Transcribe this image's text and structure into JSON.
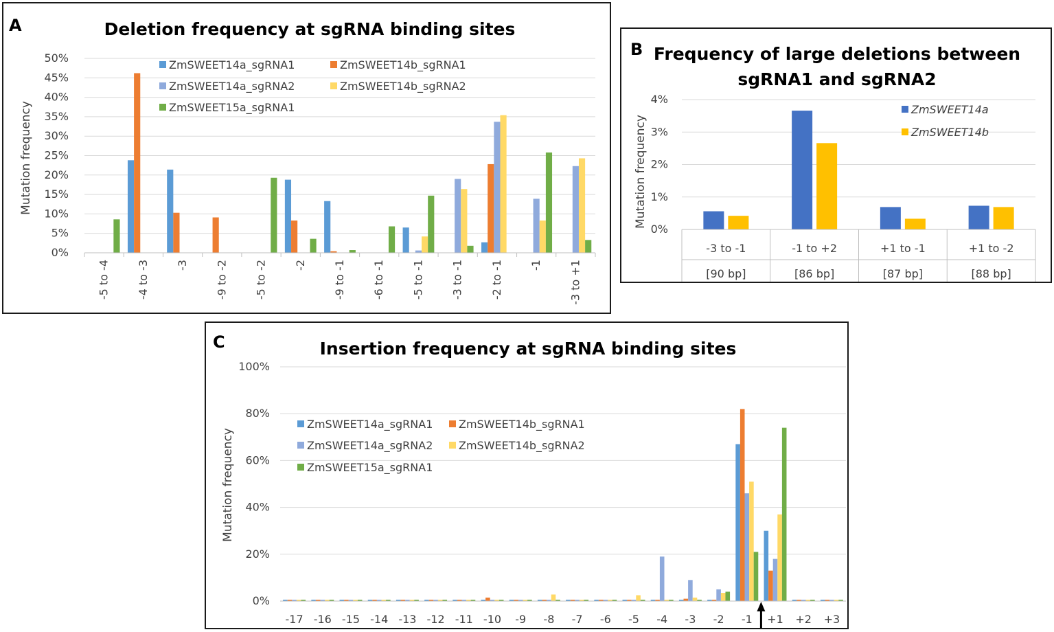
{
  "colors": {
    "s14a1": "#5b9bd5",
    "s14b1": "#ed7d31",
    "s14a2": "#8faadc",
    "s14b2": "#ffd966",
    "s15a1": "#70ad47",
    "b14a": "#4472c4",
    "b14b": "#ffc000",
    "grid": "#d9d9d9",
    "text": "#404040"
  },
  "panels": {
    "a": "A",
    "b": "B",
    "c": "C"
  },
  "chart_data": [
    {
      "panel": "A",
      "type": "bar",
      "title": "Deletion frequency at sgRNA binding sites",
      "xlabel": "",
      "ylabel": "Mutation frequency",
      "ylim": [
        0,
        50
      ],
      "yticks": [
        "0%",
        "5%",
        "10%",
        "15%",
        "20%",
        "25%",
        "30%",
        "35%",
        "40%",
        "45%",
        "50%"
      ],
      "legend_position": "top-left",
      "categories": [
        "-5 to -4",
        "-4 to -3",
        "-3",
        "-9 to -2",
        "-5 to -2",
        "-2",
        "-9 to -1",
        "-6 to -1",
        "-5 to -1",
        "-3 to -1",
        "-2 to -1",
        "-1",
        "-3 to +1"
      ],
      "series": [
        {
          "name": "ZmSWEET14a_sgRNA1",
          "color_key": "s14a1",
          "values": [
            0,
            23.8,
            21.4,
            0,
            0,
            18.8,
            13.3,
            0,
            6.5,
            0,
            2.7,
            0,
            0
          ]
        },
        {
          "name": "ZmSWEET14b_sgRNA1",
          "color_key": "s14b1",
          "values": [
            0,
            46.2,
            10.3,
            9.1,
            0,
            8.3,
            0.4,
            0,
            0,
            0,
            22.8,
            0,
            0
          ]
        },
        {
          "name": "ZmSWEET14a_sgRNA2",
          "color_key": "s14a2",
          "values": [
            0,
            0,
            0,
            0,
            0,
            0,
            0,
            0,
            0.6,
            19.0,
            33.7,
            13.9,
            22.3
          ]
        },
        {
          "name": "ZmSWEET14b_sgRNA2",
          "color_key": "s14b2",
          "values": [
            0,
            0,
            0,
            0,
            0,
            0,
            0,
            0,
            4.2,
            16.4,
            35.4,
            8.3,
            24.3
          ]
        },
        {
          "name": "ZmSWEET15a_sgRNA1",
          "color_key": "s15a1",
          "values": [
            8.6,
            0,
            0,
            0,
            19.3,
            3.6,
            0.7,
            6.8,
            14.7,
            1.8,
            0,
            25.8,
            3.3
          ]
        }
      ]
    },
    {
      "panel": "B",
      "type": "bar",
      "title": [
        "Frequency of large deletions between",
        "sgRNA1 and sgRNA2"
      ],
      "xlabel": "",
      "ylabel": "Mutation frequency",
      "ylim": [
        0,
        4
      ],
      "yticks": [
        "0%",
        "1%",
        "2%",
        "3%",
        "4%"
      ],
      "legend_position": "top-right",
      "categories": [
        "-3 to -1",
        "-1 to +2",
        "+1 to -1",
        "+1 to -2"
      ],
      "category_sublabels": [
        "[90 bp]",
        "[86 bp]",
        "[87 bp]",
        "[88 bp]"
      ],
      "series": [
        {
          "name": "ZmSWEET14a",
          "color_key": "b14a",
          "values": [
            0.56,
            3.66,
            0.69,
            0.73
          ]
        },
        {
          "name": "ZmSWEET14b",
          "color_key": "b14b",
          "values": [
            0.42,
            2.66,
            0.33,
            0.69
          ]
        }
      ]
    },
    {
      "panel": "C",
      "type": "bar",
      "title": "Insertion frequency at sgRNA binding sites",
      "xlabel": "",
      "ylabel": "Mutation frequency",
      "ylim": [
        0,
        100
      ],
      "yticks": [
        "0%",
        "20%",
        "40%",
        "60%",
        "80%",
        "100%"
      ],
      "legend_position": "top-left",
      "arrow_after_category": "-1",
      "categories": [
        "-17",
        "-16",
        "-15",
        "-14",
        "-13",
        "-12",
        "-11",
        "-10",
        "-9",
        "-8",
        "-7",
        "-6",
        "-5",
        "-4",
        "-3",
        "-2",
        "-1",
        "+1",
        "+2",
        "+3"
      ],
      "series": [
        {
          "name": "ZmSWEET14a_sgRNA1",
          "color_key": "s14a1",
          "values": [
            0.6,
            0.6,
            0.6,
            0.6,
            0.6,
            0.6,
            0.6,
            0.6,
            0.6,
            0.6,
            0.6,
            0.6,
            0.6,
            0.6,
            0.6,
            0.6,
            67,
            30,
            0.6,
            0.6
          ]
        },
        {
          "name": "ZmSWEET14b_sgRNA1",
          "color_key": "s14b1",
          "values": [
            0.6,
            0.6,
            0.6,
            0.6,
            0.6,
            0.6,
            0.6,
            1.5,
            0.6,
            0.6,
            0.6,
            0.6,
            0.6,
            0.6,
            1.0,
            0.6,
            82,
            13,
            0.6,
            0.6
          ]
        },
        {
          "name": "ZmSWEET14a_sgRNA2",
          "color_key": "s14a2",
          "values": [
            0.6,
            0.6,
            0.6,
            0.6,
            0.6,
            0.6,
            0.6,
            0.6,
            0.6,
            0.6,
            0.6,
            0.6,
            0.6,
            19,
            9,
            5,
            46,
            18,
            0.6,
            0.6
          ]
        },
        {
          "name": "ZmSWEET14b_sgRNA2",
          "color_key": "s14b2",
          "values": [
            0.6,
            0.6,
            0.6,
            0.6,
            0.6,
            0.6,
            0.6,
            0.6,
            0.6,
            2.8,
            0.6,
            0.6,
            2.5,
            0.6,
            1.5,
            3.5,
            51,
            37,
            0.6,
            0.6
          ]
        },
        {
          "name": "ZmSWEET15a_sgRNA1",
          "color_key": "s15a1",
          "values": [
            0.6,
            0.6,
            0.6,
            0.6,
            0.6,
            0.6,
            0.6,
            0.6,
            0.6,
            0.6,
            0.6,
            0.6,
            0.6,
            0.6,
            0.6,
            4,
            21,
            74,
            0.6,
            0.6
          ]
        }
      ]
    }
  ]
}
